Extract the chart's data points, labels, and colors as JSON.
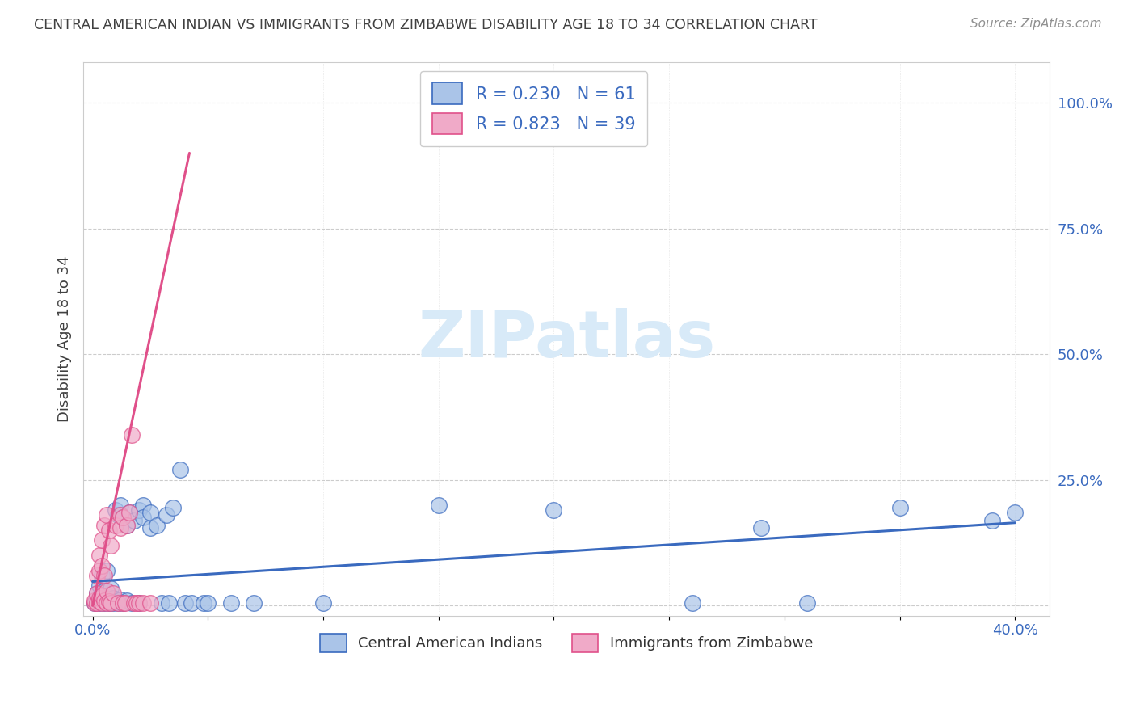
{
  "title": "CENTRAL AMERICAN INDIAN VS IMMIGRANTS FROM ZIMBABWE DISABILITY AGE 18 TO 34 CORRELATION CHART",
  "source": "Source: ZipAtlas.com",
  "ylabel": "Disability Age 18 to 34",
  "ytick_positions": [
    0.0,
    0.25,
    0.5,
    0.75,
    1.0
  ],
  "ytick_labels": [
    "",
    "25.0%",
    "50.0%",
    "75.0%",
    "100.0%"
  ],
  "xtick_positions": [
    0.0,
    0.05,
    0.1,
    0.15,
    0.2,
    0.25,
    0.3,
    0.35,
    0.4
  ],
  "xtick_labels": [
    "0.0%",
    "",
    "",
    "",
    "",
    "",
    "",
    "",
    "40.0%"
  ],
  "xlim": [
    -0.004,
    0.415
  ],
  "ylim": [
    -0.02,
    1.08
  ],
  "legend_label1": "Central American Indians",
  "legend_label2": "Immigrants from Zimbabwe",
  "blue_color": "#aac4e8",
  "pink_color": "#f0aac8",
  "line_blue": "#3a6abf",
  "line_pink": "#e0508a",
  "title_color": "#404040",
  "source_color": "#909090",
  "text_blue": "#3a6abf",
  "watermark_color": "#d8eaf8",
  "blue_scatter": [
    [
      0.001,
      0.005
    ],
    [
      0.002,
      0.01
    ],
    [
      0.002,
      0.025
    ],
    [
      0.003,
      0.005
    ],
    [
      0.003,
      0.015
    ],
    [
      0.003,
      0.04
    ],
    [
      0.004,
      0.008
    ],
    [
      0.004,
      0.02
    ],
    [
      0.004,
      0.06
    ],
    [
      0.005,
      0.005
    ],
    [
      0.005,
      0.012
    ],
    [
      0.005,
      0.03
    ],
    [
      0.006,
      0.008
    ],
    [
      0.006,
      0.018
    ],
    [
      0.006,
      0.07
    ],
    [
      0.007,
      0.005
    ],
    [
      0.007,
      0.022
    ],
    [
      0.008,
      0.01
    ],
    [
      0.008,
      0.035
    ],
    [
      0.009,
      0.005
    ],
    [
      0.009,
      0.015
    ],
    [
      0.01,
      0.008
    ],
    [
      0.01,
      0.19
    ],
    [
      0.011,
      0.005
    ],
    [
      0.011,
      0.18
    ],
    [
      0.012,
      0.012
    ],
    [
      0.012,
      0.2
    ],
    [
      0.013,
      0.005
    ],
    [
      0.013,
      0.175
    ],
    [
      0.015,
      0.01
    ],
    [
      0.015,
      0.16
    ],
    [
      0.016,
      0.185
    ],
    [
      0.017,
      0.005
    ],
    [
      0.018,
      0.17
    ],
    [
      0.02,
      0.19
    ],
    [
      0.02,
      0.005
    ],
    [
      0.022,
      0.2
    ],
    [
      0.022,
      0.175
    ],
    [
      0.025,
      0.155
    ],
    [
      0.025,
      0.185
    ],
    [
      0.028,
      0.16
    ],
    [
      0.03,
      0.005
    ],
    [
      0.032,
      0.18
    ],
    [
      0.033,
      0.005
    ],
    [
      0.035,
      0.195
    ],
    [
      0.038,
      0.27
    ],
    [
      0.04,
      0.005
    ],
    [
      0.043,
      0.005
    ],
    [
      0.048,
      0.005
    ],
    [
      0.05,
      0.005
    ],
    [
      0.06,
      0.005
    ],
    [
      0.07,
      0.005
    ],
    [
      0.1,
      0.005
    ],
    [
      0.15,
      0.2
    ],
    [
      0.2,
      0.19
    ],
    [
      0.26,
      0.005
    ],
    [
      0.29,
      0.155
    ],
    [
      0.31,
      0.005
    ],
    [
      0.35,
      0.195
    ],
    [
      0.39,
      0.17
    ],
    [
      0.4,
      0.185
    ]
  ],
  "pink_scatter": [
    [
      0.001,
      0.005
    ],
    [
      0.001,
      0.01
    ],
    [
      0.002,
      0.005
    ],
    [
      0.002,
      0.025
    ],
    [
      0.002,
      0.06
    ],
    [
      0.003,
      0.008
    ],
    [
      0.003,
      0.015
    ],
    [
      0.003,
      0.07
    ],
    [
      0.003,
      0.1
    ],
    [
      0.004,
      0.005
    ],
    [
      0.004,
      0.02
    ],
    [
      0.004,
      0.08
    ],
    [
      0.004,
      0.13
    ],
    [
      0.005,
      0.01
    ],
    [
      0.005,
      0.06
    ],
    [
      0.005,
      0.16
    ],
    [
      0.006,
      0.005
    ],
    [
      0.006,
      0.03
    ],
    [
      0.006,
      0.18
    ],
    [
      0.007,
      0.008
    ],
    [
      0.007,
      0.15
    ],
    [
      0.008,
      0.005
    ],
    [
      0.008,
      0.12
    ],
    [
      0.009,
      0.025
    ],
    [
      0.01,
      0.16
    ],
    [
      0.011,
      0.005
    ],
    [
      0.012,
      0.18
    ],
    [
      0.012,
      0.155
    ],
    [
      0.013,
      0.005
    ],
    [
      0.013,
      0.175
    ],
    [
      0.014,
      0.005
    ],
    [
      0.015,
      0.16
    ],
    [
      0.016,
      0.185
    ],
    [
      0.017,
      0.34
    ],
    [
      0.018,
      0.005
    ],
    [
      0.019,
      0.005
    ],
    [
      0.02,
      0.005
    ],
    [
      0.022,
      0.005
    ],
    [
      0.025,
      0.005
    ]
  ],
  "pink_line_x": [
    0.0,
    0.042
  ],
  "pink_line_y": [
    0.0,
    0.9
  ],
  "blue_line_x": [
    0.0,
    0.4
  ],
  "blue_line_y": [
    0.048,
    0.165
  ]
}
